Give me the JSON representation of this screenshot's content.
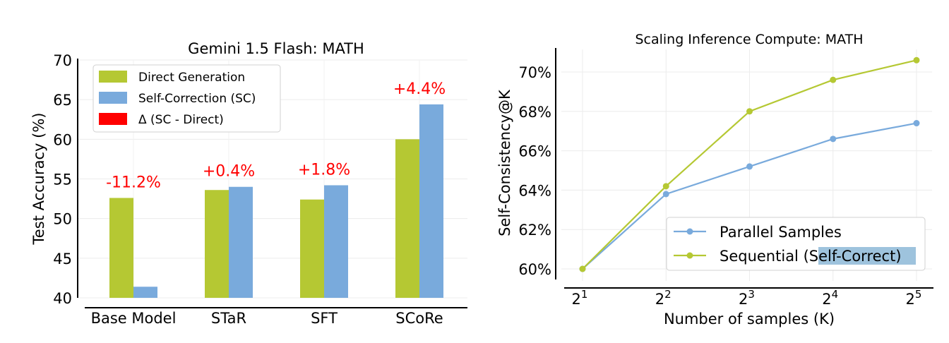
{
  "chart_data": [
    {
      "type": "bar",
      "title": "Gemini 1.5 Flash: MATH",
      "ylabel": "Test Accuracy (%)",
      "xlabel": "",
      "ylim": [
        40,
        70
      ],
      "yticks": [
        40,
        45,
        50,
        55,
        60,
        65,
        70
      ],
      "categories": [
        "Base Model",
        "STaR",
        "SFT",
        "SCoRe"
      ],
      "series": [
        {
          "name": "Direct Generation",
          "color": "#b5c833",
          "values": [
            52.6,
            53.6,
            52.4,
            60.0
          ]
        },
        {
          "name": "Self-Correction (SC)",
          "color": "#79aadc",
          "values": [
            41.4,
            54.0,
            54.2,
            64.4
          ]
        }
      ],
      "delta": {
        "name": "Δ (SC - Direct)",
        "color": "#ff0000",
        "labels": [
          "-11.2%",
          "+0.4%",
          "+1.8%",
          "+4.4%"
        ]
      },
      "legend": "top-left",
      "grid": true
    },
    {
      "type": "line",
      "title": "Scaling Inference Compute: MATH",
      "xlabel": "Number of samples (K)",
      "ylabel": "Self-Consistency@K",
      "x": [
        2,
        4,
        8,
        16,
        32
      ],
      "xscale": "log2",
      "xticks": [
        {
          "base": "2",
          "exp": "1"
        },
        {
          "base": "2",
          "exp": "2"
        },
        {
          "base": "2",
          "exp": "3"
        },
        {
          "base": "2",
          "exp": "4"
        },
        {
          "base": "2",
          "exp": "5"
        }
      ],
      "ylim": [
        59.6,
        71.0
      ],
      "yticks": [
        60,
        62,
        64,
        66,
        68,
        70
      ],
      "ytick_labels": [
        "60%",
        "62%",
        "64%",
        "66%",
        "68%",
        "70%"
      ],
      "series": [
        {
          "name": "Parallel Samples",
          "color": "#79aadc",
          "values": [
            60.0,
            63.8,
            65.2,
            66.6,
            67.4
          ]
        },
        {
          "name": "Sequential (",
          "name_highlight": "Self-Correct",
          "name_suffix": ")",
          "color": "#b5c833",
          "values": [
            60.0,
            64.2,
            68.0,
            69.6,
            70.6
          ]
        }
      ],
      "legend": "bottom-right",
      "grid": true
    }
  ]
}
